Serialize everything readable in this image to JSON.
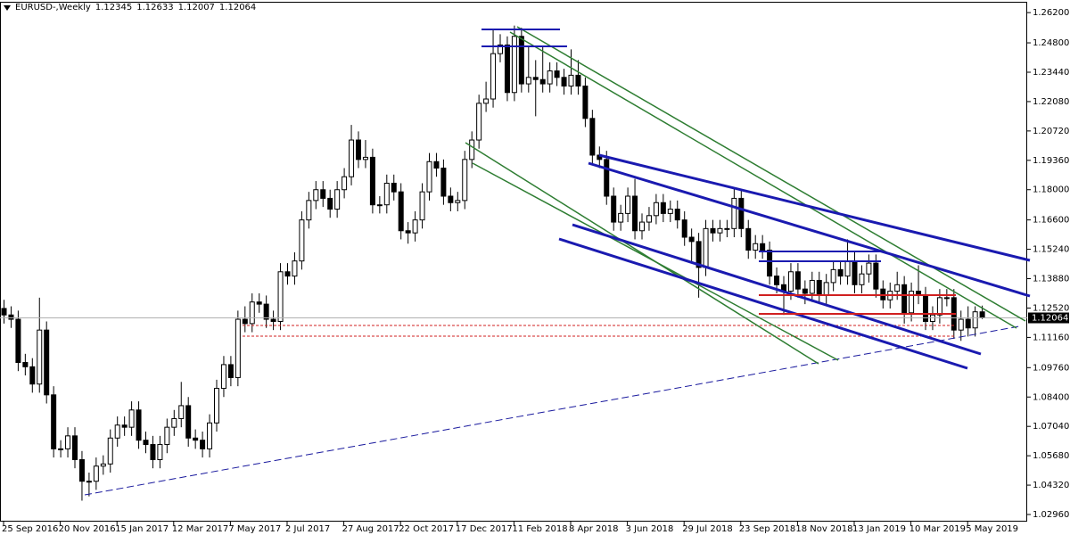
{
  "chart_data": {
    "type": "candlestick",
    "symbol": "EURUSD-,Weekly",
    "categories": [
      "25 Sep 2016",
      null,
      null,
      null,
      null,
      null,
      null,
      null,
      "20 Nov 2016",
      null,
      null,
      null,
      null,
      null,
      null,
      null,
      "15 Jan 2017",
      null,
      null,
      null,
      null,
      null,
      null,
      null,
      "12 Mar 2017",
      null,
      null,
      null,
      null,
      null,
      null,
      null,
      "7 May 2017",
      null,
      null,
      null,
      null,
      null,
      null,
      null,
      "2 Jul 2017",
      null,
      null,
      null,
      null,
      null,
      null,
      null,
      "27 Aug 2017",
      null,
      null,
      null,
      null,
      null,
      null,
      null,
      "22 Oct 2017",
      null,
      null,
      null,
      null,
      null,
      null,
      null,
      "17 Dec 2017",
      null,
      null,
      null,
      null,
      null,
      null,
      null,
      "11 Feb 2018",
      null,
      null,
      null,
      null,
      null,
      null,
      null,
      "8 Apr 2018",
      null,
      null,
      null,
      null,
      null,
      null,
      null,
      "3 Jun 2018",
      null,
      null,
      null,
      null,
      null,
      null,
      null,
      "29 Jul 2018",
      null,
      null,
      null,
      null,
      null,
      null,
      null,
      "23 Sep 2018",
      null,
      null,
      null,
      null,
      null,
      null,
      null,
      "18 Nov 2018",
      null,
      null,
      null,
      null,
      null,
      null,
      null,
      "13 Jan 2019",
      null,
      null,
      null,
      null,
      null,
      null,
      null,
      "10 Mar 2019",
      null,
      null,
      null,
      null,
      null,
      null,
      null,
      "5 May 2019",
      null,
      null
    ],
    "open": [
      1.125,
      1.122,
      1.12,
      1.1,
      1.098,
      1.09,
      1.115,
      1.085,
      1.06,
      1.06,
      1.066,
      1.055,
      1.045,
      1.045,
      1.052,
      1.053,
      1.065,
      1.071,
      1.07,
      1.078,
      1.064,
      1.062,
      1.055,
      1.062,
      1.07,
      1.074,
      1.08,
      1.065,
      1.064,
      1.06,
      1.072,
      1.088,
      1.099,
      1.093,
      1.12,
      1.118,
      1.128,
      1.127,
      1.12,
      1.119,
      1.142,
      1.14,
      1.147,
      1.166,
      1.175,
      1.18,
      1.176,
      1.171,
      1.18,
      1.186,
      1.203,
      1.194,
      1.195,
      1.173,
      1.173,
      1.183,
      1.179,
      1.161,
      1.16,
      1.166,
      1.179,
      1.193,
      1.19,
      1.177,
      1.174,
      1.175,
      1.194,
      1.203,
      1.22,
      1.222,
      1.243,
      1.247,
      1.225,
      1.251,
      1.229,
      1.232,
      1.231,
      1.229,
      1.235,
      1.232,
      1.228,
      1.233,
      1.228,
      1.213,
      1.196,
      1.194,
      1.177,
      1.165,
      1.169,
      1.177,
      1.161,
      1.165,
      1.168,
      1.174,
      1.169,
      1.171,
      1.166,
      1.158,
      1.156,
      1.144,
      1.162,
      1.16,
      1.162,
      1.162,
      1.176,
      1.162,
      1.152,
      1.155,
      1.152,
      1.14,
      1.136,
      1.133,
      1.142,
      1.134,
      1.132,
      1.138,
      1.131,
      1.137,
      1.143,
      1.14,
      1.147,
      1.136,
      1.141,
      1.146,
      1.134,
      1.129,
      1.133,
      1.136,
      1.123,
      1.133,
      1.131,
      1.119,
      1.122,
      1.13,
      1.13,
      1.115,
      1.12,
      1.116,
      1.12345
    ],
    "high": [
      1.129,
      1.126,
      1.124,
      1.104,
      1.102,
      1.13,
      1.119,
      1.089,
      1.064,
      1.07,
      1.07,
      1.059,
      1.049,
      1.056,
      1.057,
      1.069,
      1.075,
      1.075,
      1.082,
      1.082,
      1.068,
      1.066,
      1.066,
      1.074,
      1.078,
      1.091,
      1.084,
      1.069,
      1.068,
      1.076,
      1.092,
      1.103,
      1.103,
      1.124,
      1.126,
      1.132,
      1.132,
      1.131,
      1.124,
      1.146,
      1.146,
      1.151,
      1.17,
      1.179,
      1.184,
      1.184,
      1.18,
      1.184,
      1.19,
      1.21,
      1.207,
      1.203,
      1.199,
      1.177,
      1.187,
      1.187,
      1.183,
      1.165,
      1.17,
      1.183,
      1.197,
      1.197,
      1.194,
      1.181,
      1.179,
      1.198,
      1.207,
      1.224,
      1.23,
      1.254,
      1.252,
      1.251,
      1.256,
      1.255,
      1.246,
      1.24,
      1.246,
      1.239,
      1.239,
      1.236,
      1.245,
      1.24,
      1.232,
      1.217,
      1.2,
      1.198,
      1.181,
      1.173,
      1.181,
      1.185,
      1.169,
      1.172,
      1.178,
      1.178,
      1.175,
      1.175,
      1.17,
      1.162,
      1.16,
      1.166,
      1.166,
      1.166,
      1.166,
      1.181,
      1.18,
      1.166,
      1.159,
      1.159,
      1.156,
      1.144,
      1.14,
      1.146,
      1.146,
      1.138,
      1.142,
      1.142,
      1.141,
      1.147,
      1.147,
      1.157,
      1.151,
      1.145,
      1.15,
      1.15,
      1.138,
      1.137,
      1.142,
      1.14,
      1.137,
      1.145,
      1.135,
      1.126,
      1.134,
      1.134,
      1.134,
      1.124,
      1.126,
      1.126,
      1.12633
    ],
    "low": [
      1.118,
      1.116,
      1.096,
      1.094,
      1.086,
      1.086,
      1.081,
      1.056,
      1.056,
      1.056,
      1.051,
      1.036,
      1.038,
      1.041,
      1.048,
      1.049,
      1.061,
      1.066,
      1.066,
      1.06,
      1.058,
      1.051,
      1.051,
      1.058,
      1.066,
      1.07,
      1.061,
      1.06,
      1.056,
      1.056,
      1.068,
      1.084,
      1.089,
      1.089,
      1.114,
      1.114,
      1.123,
      1.116,
      1.115,
      1.115,
      1.136,
      1.136,
      1.143,
      1.162,
      1.171,
      1.172,
      1.167,
      1.167,
      1.176,
      1.182,
      1.19,
      1.19,
      1.169,
      1.169,
      1.169,
      1.175,
      1.157,
      1.155,
      1.156,
      1.162,
      1.175,
      1.186,
      1.173,
      1.17,
      1.17,
      1.171,
      1.19,
      1.199,
      1.216,
      1.218,
      1.239,
      1.221,
      1.221,
      1.225,
      1.225,
      1.214,
      1.225,
      1.225,
      1.228,
      1.224,
      1.224,
      1.224,
      1.209,
      1.192,
      1.19,
      1.173,
      1.161,
      1.161,
      1.165,
      1.157,
      1.157,
      1.161,
      1.164,
      1.165,
      1.165,
      1.162,
      1.154,
      1.146,
      1.13,
      1.14,
      1.156,
      1.156,
      1.158,
      1.158,
      1.158,
      1.148,
      1.148,
      1.148,
      1.136,
      1.132,
      1.122,
      1.129,
      1.13,
      1.127,
      1.128,
      1.127,
      1.127,
      1.133,
      1.136,
      1.136,
      1.132,
      1.132,
      1.137,
      1.13,
      1.125,
      1.125,
      1.129,
      1.118,
      1.119,
      1.127,
      1.115,
      1.115,
      1.118,
      1.126,
      1.111,
      1.11,
      1.112,
      1.112,
      1.12007
    ],
    "close": [
      1.122,
      1.12,
      1.1,
      1.098,
      1.09,
      1.115,
      1.085,
      1.06,
      1.06,
      1.066,
      1.055,
      1.045,
      1.045,
      1.052,
      1.053,
      1.065,
      1.071,
      1.07,
      1.078,
      1.064,
      1.062,
      1.055,
      1.062,
      1.07,
      1.074,
      1.08,
      1.065,
      1.064,
      1.06,
      1.072,
      1.088,
      1.099,
      1.093,
      1.12,
      1.118,
      1.128,
      1.127,
      1.12,
      1.119,
      1.142,
      1.14,
      1.147,
      1.166,
      1.175,
      1.18,
      1.176,
      1.171,
      1.18,
      1.186,
      1.203,
      1.194,
      1.195,
      1.173,
      1.173,
      1.183,
      1.179,
      1.161,
      1.16,
      1.166,
      1.179,
      1.193,
      1.19,
      1.177,
      1.174,
      1.175,
      1.194,
      1.203,
      1.22,
      1.222,
      1.243,
      1.247,
      1.225,
      1.251,
      1.229,
      1.232,
      1.231,
      1.229,
      1.235,
      1.232,
      1.228,
      1.233,
      1.228,
      1.213,
      1.196,
      1.194,
      1.177,
      1.165,
      1.169,
      1.177,
      1.161,
      1.165,
      1.168,
      1.174,
      1.169,
      1.171,
      1.166,
      1.158,
      1.156,
      1.144,
      1.162,
      1.16,
      1.162,
      1.162,
      1.176,
      1.162,
      1.152,
      1.155,
      1.152,
      1.14,
      1.136,
      1.133,
      1.142,
      1.134,
      1.132,
      1.138,
      1.131,
      1.137,
      1.143,
      1.14,
      1.147,
      1.136,
      1.141,
      1.146,
      1.134,
      1.129,
      1.133,
      1.136,
      1.123,
      1.133,
      1.131,
      1.119,
      1.122,
      1.13,
      1.13,
      1.115,
      1.12,
      1.116,
      1.12345,
      1.12064
    ],
    "ylim": [
      1.0263,
      1.2666
    ],
    "yticks": [
      {
        "value": 1.262,
        "label": "1.26200"
      },
      {
        "value": 1.248,
        "label": "1.24800"
      },
      {
        "value": 1.2344,
        "label": "1.23440"
      },
      {
        "value": 1.2208,
        "label": "1.22080"
      },
      {
        "value": 1.2072,
        "label": "1.20720"
      },
      {
        "value": 1.1936,
        "label": "1.19360"
      },
      {
        "value": 1.18,
        "label": "1.18000"
      },
      {
        "value": 1.166,
        "label": "1.16600"
      },
      {
        "value": 1.1524,
        "label": "1.15240"
      },
      {
        "value": 1.1388,
        "label": "1.13880"
      },
      {
        "value": 1.1252,
        "label": "1.12520"
      },
      {
        "value": 1.1116,
        "label": "1.11160"
      },
      {
        "value": 1.0976,
        "label": "1.09760"
      },
      {
        "value": 1.084,
        "label": "1.08400"
      },
      {
        "value": 1.0704,
        "label": "1.07040"
      },
      {
        "value": 1.0568,
        "label": "1.05680"
      },
      {
        "value": 1.0432,
        "label": "1.04320"
      },
      {
        "value": 1.0296,
        "label": "1.02960"
      }
    ],
    "grid": false
  }
}
